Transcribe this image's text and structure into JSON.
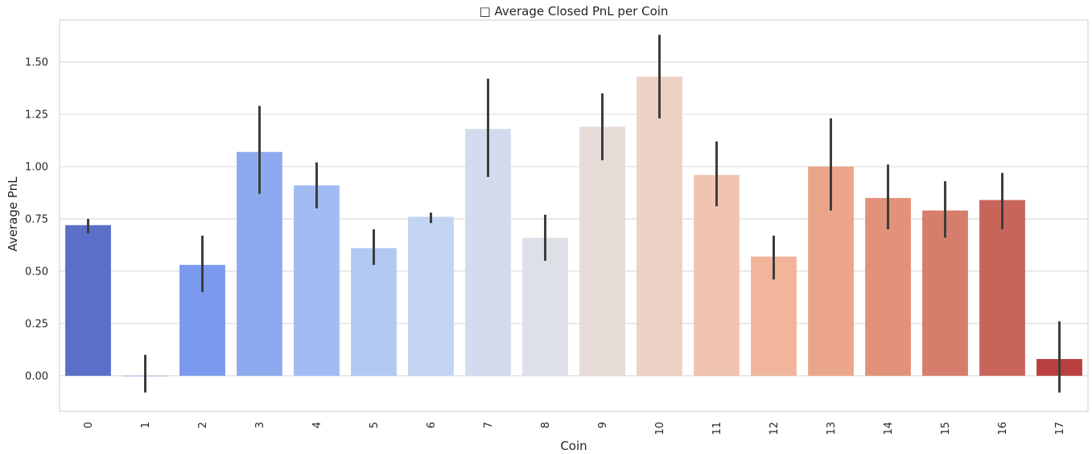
{
  "chart_data": {
    "type": "bar",
    "title": "□ Average Closed PnL per Coin",
    "xlabel": "Coin",
    "ylabel": "Average PnL",
    "ylim": [
      -0.17,
      1.7
    ],
    "yticks": [
      "0.00",
      "0.25",
      "0.50",
      "0.75",
      "1.00",
      "1.25",
      "1.50"
    ],
    "grid": true,
    "legend": "none",
    "categories": [
      "0",
      "1",
      "2",
      "3",
      "4",
      "5",
      "6",
      "7",
      "8",
      "9",
      "10",
      "11",
      "12",
      "13",
      "14",
      "15",
      "16",
      "17"
    ],
    "values": [
      0.72,
      0.0,
      0.53,
      1.07,
      0.91,
      0.61,
      0.76,
      1.18,
      0.66,
      1.19,
      1.43,
      0.96,
      0.57,
      1.0,
      0.85,
      0.79,
      0.84,
      0.08
    ],
    "error_low": [
      0.68,
      -0.08,
      0.4,
      0.87,
      0.8,
      0.53,
      0.73,
      0.95,
      0.55,
      1.03,
      1.23,
      0.81,
      0.46,
      0.79,
      0.7,
      0.66,
      0.7,
      -0.08
    ],
    "error_high": [
      0.75,
      0.1,
      0.67,
      1.29,
      1.02,
      0.7,
      0.78,
      1.42,
      0.77,
      1.35,
      1.63,
      1.12,
      0.67,
      1.23,
      1.01,
      0.93,
      0.97,
      0.26
    ],
    "colors": [
      "#5a6fc8",
      "#6c86e6",
      "#7b9aed",
      "#8eaaee",
      "#a1bbf3",
      "#b2c9f4",
      "#c3d4f2",
      "#d2dcee",
      "#dde0e7",
      "#e6dbd6",
      "#ecd1c4",
      "#f0c4b0",
      "#f0b59b",
      "#eba58a",
      "#e2917a",
      "#d77d6b",
      "#c8655b",
      "#b9403f"
    ]
  }
}
